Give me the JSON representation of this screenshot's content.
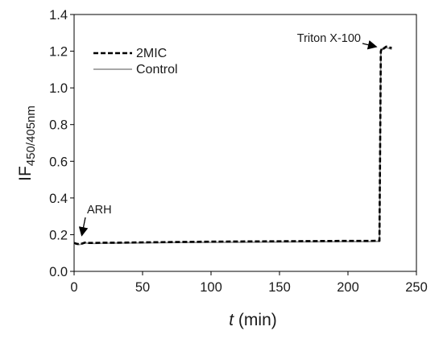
{
  "chart_data": {
    "type": "line",
    "xlabel_var": "t",
    "xlabel_unit": " (min)",
    "ylabel_main": "IF",
    "ylabel_sub": "450/405nm",
    "xlim": [
      0,
      250
    ],
    "ylim": [
      0,
      1.4
    ],
    "xticks": [
      0,
      50,
      100,
      150,
      200,
      250
    ],
    "yticks": [
      0.0,
      0.2,
      0.4,
      0.6,
      0.8,
      1.0,
      1.2,
      1.4
    ],
    "xtick_labels": [
      "0",
      "50",
      "100",
      "150",
      "200",
      "250"
    ],
    "ytick_labels": [
      "0.0",
      "0.2",
      "0.4",
      "0.6",
      "0.8",
      "1.0",
      "1.2",
      "1.4"
    ],
    "grid": false,
    "legend_position": "top-left",
    "series": [
      {
        "name": "2MIC",
        "style": "dashed",
        "color": "#000000",
        "x": [
          0,
          2,
          4,
          6,
          8,
          10,
          15,
          20,
          30,
          50,
          75,
          100,
          125,
          150,
          175,
          200,
          215,
          222,
          223,
          224,
          225,
          226,
          228,
          230,
          232
        ],
        "y": [
          0.155,
          0.15,
          0.148,
          0.152,
          0.157,
          0.155,
          0.155,
          0.156,
          0.156,
          0.158,
          0.16,
          0.162,
          0.163,
          0.164,
          0.165,
          0.166,
          0.166,
          0.167,
          0.167,
          1.2,
          1.22,
          1.215,
          1.225,
          1.22,
          1.218
        ]
      },
      {
        "name": "Control",
        "style": "solid",
        "color": "#8c8c8c",
        "x": [
          0,
          2,
          4,
          6,
          8,
          10,
          15,
          20,
          30,
          50,
          75,
          100,
          125,
          150,
          175,
          200,
          215,
          222,
          223,
          224,
          225,
          226,
          228,
          230,
          232
        ],
        "y": [
          0.15,
          0.148,
          0.146,
          0.15,
          0.155,
          0.153,
          0.152,
          0.153,
          0.154,
          0.155,
          0.157,
          0.158,
          0.159,
          0.16,
          0.161,
          0.162,
          0.162,
          0.163,
          0.163,
          1.19,
          1.215,
          1.21,
          1.22,
          1.215,
          1.21
        ]
      }
    ],
    "annotations": [
      {
        "text": "ARH",
        "point": [
          5,
          0.16
        ]
      },
      {
        "text": "Triton X-100",
        "point": [
          222,
          1.215
        ]
      }
    ]
  }
}
